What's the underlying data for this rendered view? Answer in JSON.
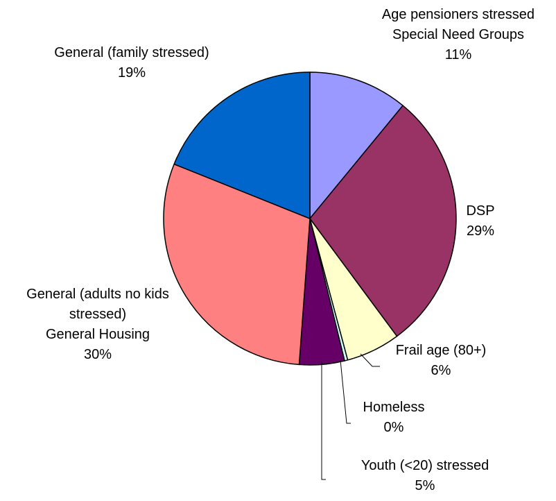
{
  "chart_data": {
    "type": "pie",
    "title": "",
    "legend": "none",
    "slices": [
      {
        "label_lines": [
          "Age pensioners stressed",
          "Special Need Groups"
        ],
        "value_label": "11%",
        "value": 11,
        "color": "#9999FF"
      },
      {
        "label_lines": [
          "DSP"
        ],
        "value_label": "29%",
        "value": 29,
        "color": "#993366"
      },
      {
        "label_lines": [
          "Frail age (80+)"
        ],
        "value_label": "6%",
        "value": 6,
        "color": "#FFFFCC"
      },
      {
        "label_lines": [
          "Homeless"
        ],
        "value_label": "0%",
        "value": 0.35,
        "color": "#CCFFFF"
      },
      {
        "label_lines": [
          "Youth (<20) stressed"
        ],
        "value_label": "5%",
        "value": 5,
        "color": "#660066"
      },
      {
        "label_lines": [
          "General (adults no kids",
          "stressed)",
          "General Housing"
        ],
        "value_label": "30%",
        "value": 30,
        "color": "#FF8080"
      },
      {
        "label_lines": [
          "General (family stressed)"
        ],
        "value_label": "19%",
        "value": 19,
        "color": "#0066CC"
      }
    ]
  }
}
